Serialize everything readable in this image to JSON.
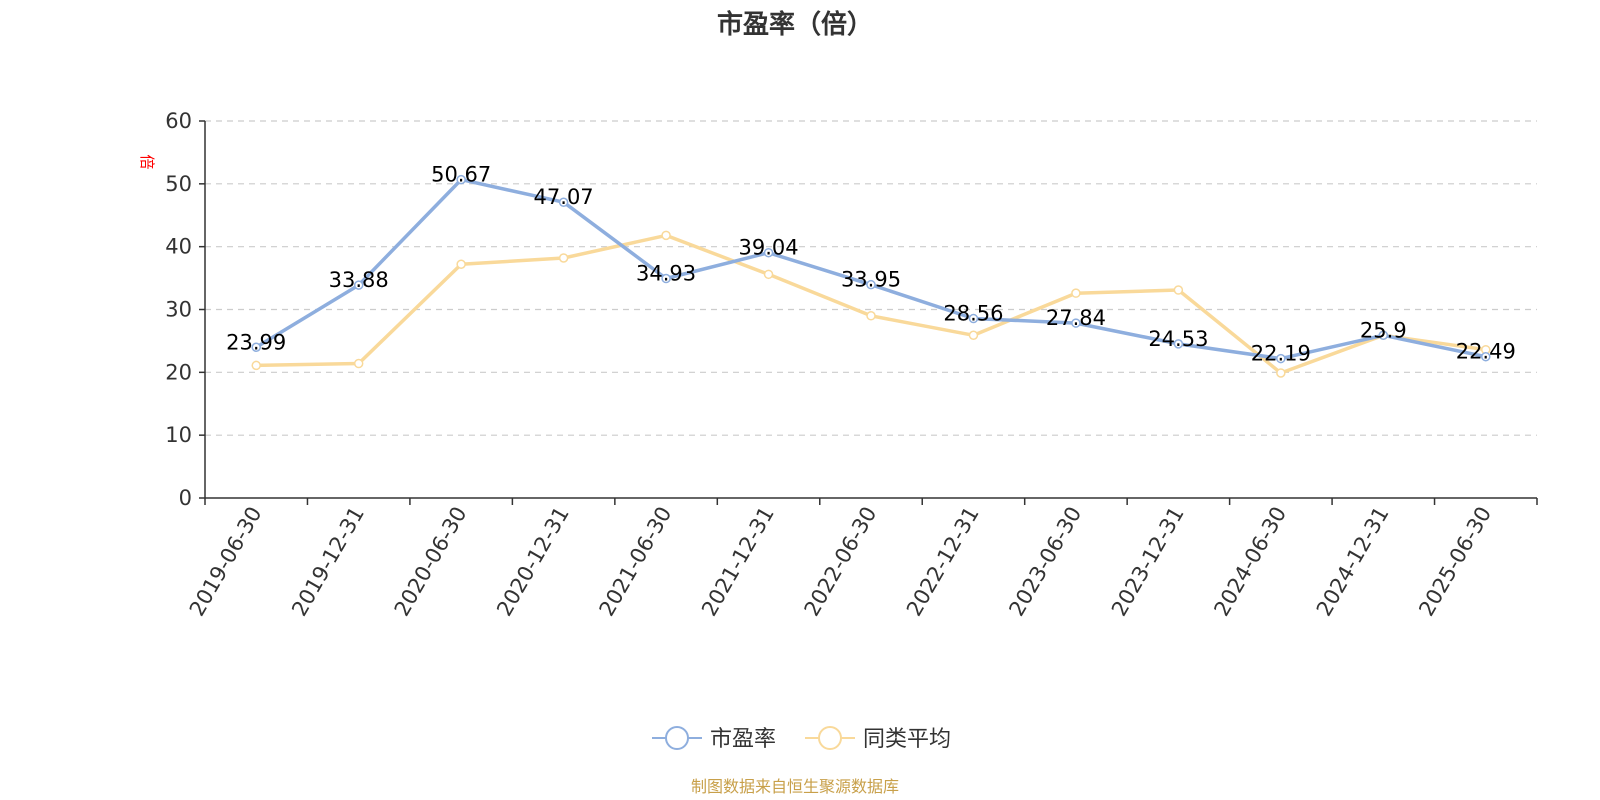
{
  "title": "市盈率（倍）",
  "unit_label": "倍",
  "source_text": "制图数据来自恒生聚源数据库",
  "colors": {
    "series_pe": "#8eaede",
    "series_avg": "#f9d99a",
    "axis": "#333333",
    "grid": "#cccccc",
    "source": "#c8a04a"
  },
  "chart_data": {
    "type": "line",
    "title": "市盈率（倍）",
    "categories": [
      "2019-06-30",
      "2019-12-31",
      "2020-06-30",
      "2020-12-31",
      "2021-06-30",
      "2021-12-31",
      "2022-06-30",
      "2022-12-31",
      "2023-06-30",
      "2023-12-31",
      "2024-06-30",
      "2024-12-31",
      "2025-06-30"
    ],
    "ylim": [
      0,
      60
    ],
    "yticks": [
      0,
      10,
      20,
      30,
      40,
      50,
      60
    ],
    "ylabel": "倍",
    "grid": true,
    "legend_position": "bottom-center",
    "series": [
      {
        "name": "市盈率",
        "values": [
          23.99,
          33.88,
          50.67,
          47.07,
          34.93,
          39.04,
          33.95,
          28.56,
          27.84,
          24.53,
          22.19,
          25.9,
          22.49
        ],
        "labels": [
          "23.99",
          "33.88",
          "50.67",
          "47.07",
          "34.93",
          "39.04",
          "33.95",
          "28.56",
          "27.84",
          "24.53",
          "22.19",
          "25.9",
          "22.49"
        ]
      },
      {
        "name": "同类平均",
        "values": [
          21.1,
          21.4,
          37.2,
          38.2,
          41.8,
          35.6,
          29.0,
          25.9,
          32.6,
          33.1,
          19.9,
          25.9,
          23.6
        ]
      }
    ]
  }
}
